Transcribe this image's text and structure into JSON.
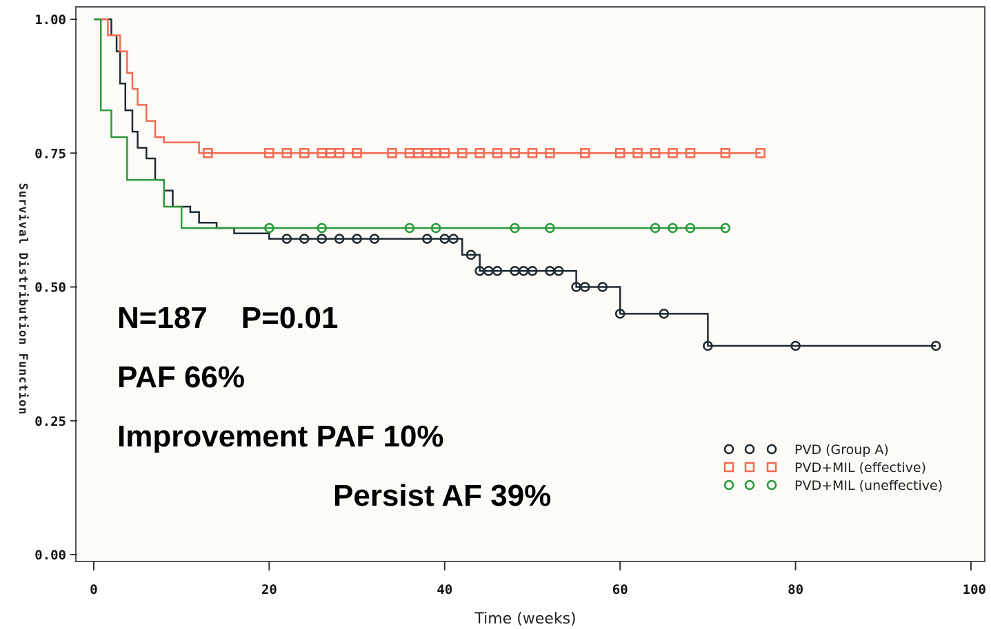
{
  "chart_data": {
    "type": "line",
    "subtype": "kaplan-meier step",
    "title": "",
    "xlabel": "Time (weeks)",
    "ylabel": "Survival Distribution Function",
    "xlim": [
      0,
      100
    ],
    "ylim": [
      0,
      1
    ],
    "x_ticks": [
      "0",
      "20",
      "40",
      "60",
      "80",
      "100"
    ],
    "y_ticks": [
      "0.00",
      "0.25",
      "0.50",
      "0.75",
      "1.00"
    ],
    "grid": false,
    "legend_position": "bottom-right",
    "annotations": [
      "N=187    P=0.01",
      "PAF 66%",
      "Improvement PAF 10%",
      "Persist AF 39%"
    ],
    "series": [
      {
        "name": "PVD (Group A)",
        "color": "#1e2a30",
        "marker": "circle",
        "steps": [
          [
            0,
            1.0
          ],
          [
            2,
            0.97
          ],
          [
            2.6,
            0.94
          ],
          [
            3,
            0.88
          ],
          [
            3.6,
            0.83
          ],
          [
            4.4,
            0.79
          ],
          [
            5,
            0.76
          ],
          [
            6,
            0.74
          ],
          [
            7,
            0.7
          ],
          [
            8,
            0.68
          ],
          [
            9,
            0.65
          ],
          [
            11,
            0.64
          ],
          [
            12,
            0.62
          ],
          [
            14,
            0.61
          ],
          [
            16,
            0.6
          ],
          [
            20,
            0.59
          ],
          [
            42,
            0.56
          ],
          [
            44,
            0.53
          ],
          [
            55,
            0.5
          ],
          [
            60,
            0.45
          ],
          [
            70,
            0.39
          ],
          [
            96,
            0.39
          ]
        ],
        "censored": [
          [
            22,
            0.59
          ],
          [
            24,
            0.59
          ],
          [
            26,
            0.59
          ],
          [
            28,
            0.59
          ],
          [
            30,
            0.59
          ],
          [
            32,
            0.59
          ],
          [
            38,
            0.59
          ],
          [
            40,
            0.59
          ],
          [
            41,
            0.59
          ],
          [
            43,
            0.56
          ],
          [
            44,
            0.53
          ],
          [
            45,
            0.53
          ],
          [
            46,
            0.53
          ],
          [
            48,
            0.53
          ],
          [
            49,
            0.53
          ],
          [
            50,
            0.53
          ],
          [
            52,
            0.53
          ],
          [
            53,
            0.53
          ],
          [
            55,
            0.5
          ],
          [
            56,
            0.5
          ],
          [
            58,
            0.5
          ],
          [
            60,
            0.45
          ],
          [
            65,
            0.45
          ],
          [
            70,
            0.39
          ],
          [
            80,
            0.39
          ],
          [
            96,
            0.39
          ]
        ]
      },
      {
        "name": "PVD+MIL (effective)",
        "color": "#f26a50",
        "marker": "square",
        "steps": [
          [
            0,
            1.0
          ],
          [
            1.6,
            0.97
          ],
          [
            3,
            0.94
          ],
          [
            3.8,
            0.9
          ],
          [
            4.4,
            0.87
          ],
          [
            5,
            0.84
          ],
          [
            6,
            0.81
          ],
          [
            7,
            0.78
          ],
          [
            8,
            0.77
          ],
          [
            12,
            0.75
          ],
          [
            76,
            0.75
          ]
        ],
        "censored": [
          [
            13,
            0.75
          ],
          [
            20,
            0.75
          ],
          [
            22,
            0.75
          ],
          [
            24,
            0.75
          ],
          [
            26,
            0.75
          ],
          [
            27,
            0.75
          ],
          [
            28,
            0.75
          ],
          [
            30,
            0.75
          ],
          [
            34,
            0.75
          ],
          [
            36,
            0.75
          ],
          [
            37,
            0.75
          ],
          [
            38,
            0.75
          ],
          [
            39,
            0.75
          ],
          [
            40,
            0.75
          ],
          [
            42,
            0.75
          ],
          [
            44,
            0.75
          ],
          [
            46,
            0.75
          ],
          [
            48,
            0.75
          ],
          [
            50,
            0.75
          ],
          [
            52,
            0.75
          ],
          [
            56,
            0.75
          ],
          [
            60,
            0.75
          ],
          [
            62,
            0.75
          ],
          [
            64,
            0.75
          ],
          [
            66,
            0.75
          ],
          [
            68,
            0.75
          ],
          [
            72,
            0.75
          ],
          [
            76,
            0.75
          ]
        ]
      },
      {
        "name": "PVD+MIL (uneffective)",
        "color": "#2a9a3c",
        "marker": "circle",
        "steps": [
          [
            0,
            1.0
          ],
          [
            0.8,
            0.83
          ],
          [
            2,
            0.78
          ],
          [
            3.8,
            0.7
          ],
          [
            8,
            0.65
          ],
          [
            10,
            0.61
          ],
          [
            72,
            0.61
          ]
        ],
        "censored": [
          [
            20,
            0.61
          ],
          [
            26,
            0.61
          ],
          [
            36,
            0.61
          ],
          [
            39,
            0.61
          ],
          [
            48,
            0.61
          ],
          [
            52,
            0.61
          ],
          [
            64,
            0.61
          ],
          [
            66,
            0.61
          ],
          [
            68,
            0.61
          ],
          [
            72,
            0.61
          ]
        ]
      }
    ]
  }
}
